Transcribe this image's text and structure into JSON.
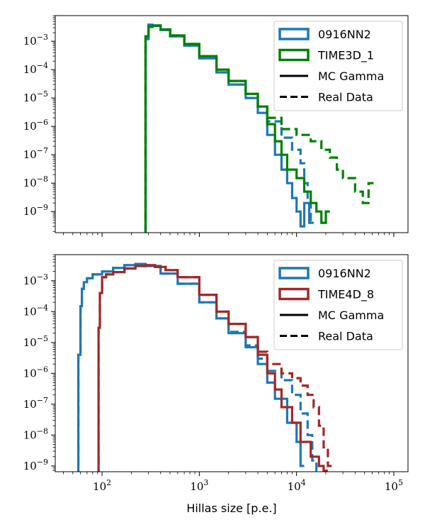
{
  "figure": {
    "xlabel": "Hillas size [p.e.]"
  },
  "chart_data": [
    {
      "type": "line",
      "title": "",
      "xscale": "log",
      "yscale": "log",
      "xlim": [
        33,
        140000
      ],
      "ylim": [
        1.8e-10,
        0.008
      ],
      "xlabel": "",
      "ylabel": "",
      "xticks": [
        {
          "value": 100,
          "base": "10",
          "exp": "2"
        },
        {
          "value": 1000,
          "base": "10",
          "exp": "3"
        },
        {
          "value": 10000,
          "base": "10",
          "exp": "4"
        },
        {
          "value": 100000,
          "base": "10",
          "exp": "5"
        }
      ],
      "yticks": [
        {
          "value": 1e-09,
          "base": "10",
          "exp": "−9"
        },
        {
          "value": 1e-08,
          "base": "10",
          "exp": "−8"
        },
        {
          "value": 1e-07,
          "base": "10",
          "exp": "−7"
        },
        {
          "value": 1e-06,
          "base": "10",
          "exp": "−6"
        },
        {
          "value": 1e-05,
          "base": "10",
          "exp": "−5"
        },
        {
          "value": 0.0001,
          "base": "10",
          "exp": "−4"
        },
        {
          "value": 0.001,
          "base": "10",
          "exp": "−3"
        }
      ],
      "show_xtick_labels": false,
      "legend": {
        "position": "upper right",
        "entries": [
          {
            "label": "0916NN2",
            "kind": "patch",
            "color": "#1f77b4"
          },
          {
            "label": "TIME3D_1",
            "kind": "patch",
            "color": "#008000"
          },
          {
            "label": "MC Gamma",
            "kind": "line",
            "style": "solid",
            "color": "#000000"
          },
          {
            "label": "Real Data",
            "kind": "line",
            "style": "dashed",
            "color": "#000000"
          }
        ]
      },
      "series": [
        {
          "name": "0916NN2 MC Gamma",
          "color": "#1f77b4",
          "style": "solid",
          "x": [
            260,
            280,
            300,
            330,
            400,
            500,
            700,
            1000,
            1500,
            2000,
            3000,
            4000,
            5000,
            6000,
            7000,
            8000,
            9000,
            10000,
            11000,
            12000,
            13500,
            15000
          ],
          "y": [
            1e-11,
            0.0012,
            0.0038,
            0.0036,
            0.0025,
            0.0015,
            0.0007,
            0.00025,
            8e-05,
            3e-05,
            1e-05,
            3e-06,
            5e-07,
            1e-07,
            3e-08,
            1e-08,
            3e-09,
            1e-09,
            3e-10,
            2e-09,
            4e-10,
            1e-11
          ]
        },
        {
          "name": "0916NN2 Real Data",
          "color": "#1f77b4",
          "style": "dashed",
          "x": [
            260,
            280,
            300,
            330,
            400,
            500,
            700,
            1000,
            1500,
            2000,
            3000,
            4000,
            5000,
            7000,
            9000,
            11000,
            12000,
            13000,
            14000,
            15000
          ],
          "y": [
            1e-11,
            0.0012,
            0.0038,
            0.0036,
            0.0025,
            0.0015,
            0.0007,
            0.00025,
            8e-05,
            3e-05,
            1e-05,
            5e-06,
            1.5e-06,
            4e-07,
            1.5e-07,
            5e-08,
            1e-08,
            2e-09,
            4e-10,
            1e-11
          ]
        },
        {
          "name": "TIME3D_1 MC Gamma",
          "color": "#008000",
          "style": "solid",
          "x": [
            260,
            280,
            300,
            330,
            400,
            500,
            700,
            1000,
            1500,
            2000,
            3000,
            4000,
            5000,
            6000,
            7000,
            8000,
            10000,
            12000,
            14000,
            16000,
            18000,
            20000,
            22000
          ],
          "y": [
            1e-11,
            0.0015,
            0.0032,
            0.0035,
            0.0026,
            0.0016,
            0.0008,
            0.0003,
            0.0001,
            4e-05,
            1.4e-05,
            5e-06,
            1.2e-06,
            3e-07,
            1e-07,
            3e-08,
            1.5e-08,
            5e-09,
            2e-09,
            1e-09,
            4e-10,
            1e-09,
            1e-11
          ]
        },
        {
          "name": "TIME3D_1 Real Data",
          "color": "#008000",
          "style": "dashed",
          "x": [
            260,
            280,
            300,
            330,
            400,
            500,
            700,
            1000,
            1500,
            2000,
            3000,
            4000,
            5000,
            7000,
            10000,
            14000,
            18000,
            22000,
            26000,
            30000,
            40000,
            48000,
            55000,
            62000
          ],
          "y": [
            1e-11,
            0.0015,
            0.0032,
            0.0035,
            0.0026,
            0.0016,
            0.0008,
            0.0003,
            0.0001,
            4e-05,
            1.4e-05,
            5e-06,
            2e-06,
            8e-07,
            5e-07,
            3e-07,
            1.5e-07,
            8e-08,
            3e-08,
            1.5e-08,
            5e-09,
            2e-09,
            1e-08,
            1e-11
          ]
        }
      ]
    },
    {
      "type": "line",
      "title": "",
      "xscale": "log",
      "yscale": "log",
      "xlim": [
        33,
        140000
      ],
      "ylim": [
        6.5e-10,
        0.007
      ],
      "xlabel": "Hillas size [p.e.]",
      "ylabel": "",
      "xticks": [
        {
          "value": 100,
          "base": "10",
          "exp": "2"
        },
        {
          "value": 1000,
          "base": "10",
          "exp": "3"
        },
        {
          "value": 10000,
          "base": "10",
          "exp": "4"
        },
        {
          "value": 100000,
          "base": "10",
          "exp": "5"
        }
      ],
      "yticks": [
        {
          "value": 1e-09,
          "base": "10",
          "exp": "−9"
        },
        {
          "value": 1e-08,
          "base": "10",
          "exp": "−8"
        },
        {
          "value": 1e-07,
          "base": "10",
          "exp": "−7"
        },
        {
          "value": 1e-06,
          "base": "10",
          "exp": "−6"
        },
        {
          "value": 1e-05,
          "base": "10",
          "exp": "−5"
        },
        {
          "value": 0.0001,
          "base": "10",
          "exp": "−4"
        },
        {
          "value": 0.001,
          "base": "10",
          "exp": "−3"
        }
      ],
      "show_xtick_labels": true,
      "legend": {
        "position": "upper right",
        "entries": [
          {
            "label": "0916NN2",
            "kind": "patch",
            "color": "#1f77b4"
          },
          {
            "label": "TIME4D_8",
            "kind": "patch",
            "color": "#a02828"
          },
          {
            "label": "MC Gamma",
            "kind": "line",
            "style": "solid",
            "color": "#000000"
          },
          {
            "label": "Real Data",
            "kind": "line",
            "style": "dashed",
            "color": "#000000"
          }
        ]
      },
      "series": [
        {
          "name": "0916NN2 MC Gamma",
          "color": "#1f77b4",
          "style": "solid",
          "x": [
            55,
            57,
            60,
            62,
            65,
            70,
            80,
            100,
            130,
            170,
            220,
            280,
            400,
            600,
            1000,
            1500,
            2000,
            3000,
            4000,
            5000,
            6000,
            8000,
            10000,
            11000,
            12000
          ],
          "y": [
            1e-11,
            4e-06,
            0.00015,
            0.00055,
            0.0009,
            0.0012,
            0.0016,
            0.002,
            0.0026,
            0.0032,
            0.0035,
            0.003,
            0.0017,
            0.0008,
            0.0002,
            6e-05,
            2e-05,
            7e-06,
            2e-06,
            5e-07,
            1.5e-07,
            2.5e-08,
            6e-09,
            1e-09,
            1e-11
          ]
        },
        {
          "name": "0916NN2 Real Data",
          "color": "#1f77b4",
          "style": "dashed",
          "x": [
            55,
            57,
            60,
            62,
            65,
            70,
            80,
            100,
            130,
            170,
            220,
            280,
            400,
            600,
            1000,
            1500,
            2000,
            3000,
            4000,
            5000,
            7000,
            9000,
            11000,
            13000,
            14500,
            16000,
            17000
          ],
          "y": [
            1e-11,
            4e-06,
            0.00015,
            0.00055,
            0.0009,
            0.0012,
            0.0016,
            0.002,
            0.0026,
            0.0032,
            0.0035,
            0.003,
            0.0017,
            0.0008,
            0.0002,
            6e-05,
            2.2e-05,
            8e-06,
            3e-06,
            1.2e-06,
            6e-07,
            2e-07,
            5e-08,
            1e-08,
            1.5e-09,
            7e-10,
            1e-11
          ]
        },
        {
          "name": "TIME4D_8 MC Gamma",
          "color": "#a02828",
          "style": "solid",
          "x": [
            90,
            92,
            95,
            100,
            110,
            130,
            170,
            220,
            280,
            350,
            450,
            600,
            1000,
            1500,
            2000,
            3000,
            4000,
            5000,
            6000,
            7000,
            9000,
            11000,
            14000,
            17000,
            19000,
            21000
          ],
          "y": [
            1e-11,
            3e-05,
            0.0004,
            0.0013,
            0.0016,
            0.0019,
            0.0025,
            0.003,
            0.0032,
            0.0028,
            0.0022,
            0.0013,
            0.00035,
            0.0001,
            4e-05,
            1.5e-05,
            4e-06,
            1e-06,
            3e-07,
            8e-08,
            2.5e-08,
            6e-09,
            2e-09,
            1e-09,
            7e-10,
            1e-11
          ]
        },
        {
          "name": "TIME4D_8 Real Data",
          "color": "#a02828",
          "style": "dashed",
          "x": [
            90,
            92,
            95,
            100,
            110,
            130,
            170,
            220,
            280,
            350,
            450,
            600,
            1000,
            1500,
            2000,
            3000,
            4000,
            5000,
            7000,
            9000,
            11000,
            13000,
            15000,
            17000,
            19000,
            21000,
            23000
          ],
          "y": [
            1e-11,
            3e-05,
            0.0004,
            0.0013,
            0.0016,
            0.0019,
            0.0025,
            0.003,
            0.0032,
            0.0028,
            0.0022,
            0.0013,
            0.00035,
            0.0001,
            4e-05,
            1.5e-05,
            5e-06,
            2e-06,
            1e-06,
            7e-07,
            4e-07,
            2e-07,
            8e-08,
            2e-08,
            4e-09,
            1e-09,
            1e-11
          ]
        }
      ]
    }
  ]
}
